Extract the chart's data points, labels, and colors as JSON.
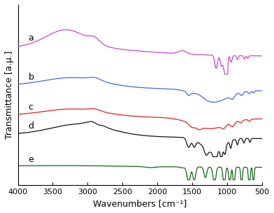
{
  "title": "",
  "xlabel": "Wavenumbers [cm⁻¹]",
  "ylabel": "Transmittance [a.μ.]",
  "xlim": [
    4000,
    500
  ],
  "labels": [
    "a",
    "b",
    "c",
    "d",
    "e"
  ],
  "colors": [
    "#cc44cc",
    "#4466dd",
    "#dd2222",
    "#111111",
    "#116611"
  ],
  "offsets": [
    3.2,
    2.2,
    1.4,
    0.7,
    0.0
  ],
  "background": "#ffffff"
}
